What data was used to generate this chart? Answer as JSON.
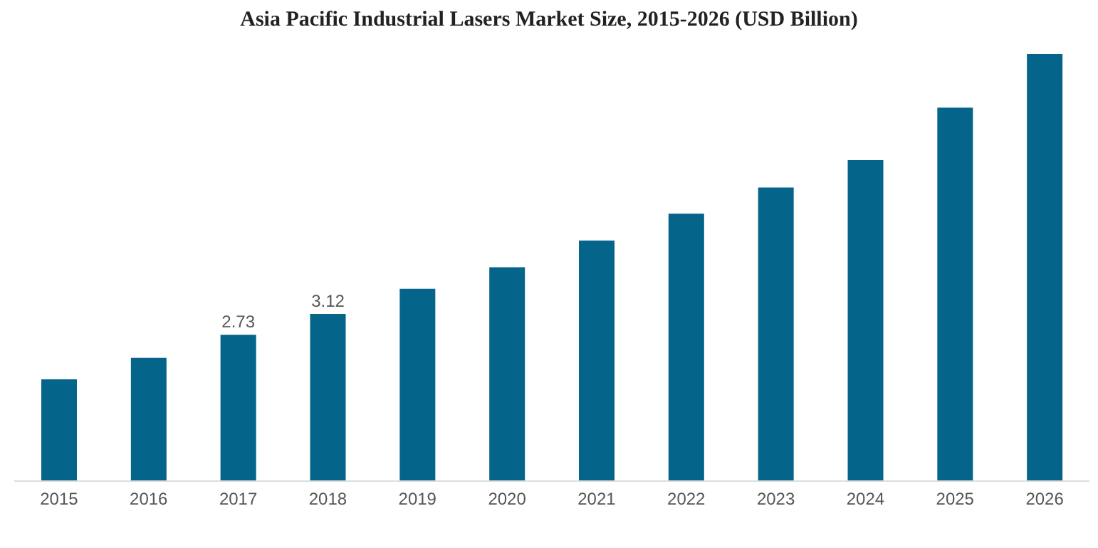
{
  "chart_data": {
    "type": "bar",
    "title": "Asia Pacific Industrial Lasers Market Size, 2015-2026 (USD Billion)",
    "categories": [
      "2015",
      "2016",
      "2017",
      "2018",
      "2019",
      "2020",
      "2021",
      "2022",
      "2023",
      "2024",
      "2025",
      "2026"
    ],
    "values": [
      1.9,
      2.3,
      2.73,
      3.12,
      3.59,
      3.99,
      4.49,
      4.99,
      5.48,
      5.99,
      6.97,
      7.97
    ],
    "value_labels": [
      null,
      null,
      "2.73",
      "3.12",
      null,
      null,
      null,
      null,
      null,
      null,
      null,
      null
    ],
    "color": "#05648a"
  }
}
